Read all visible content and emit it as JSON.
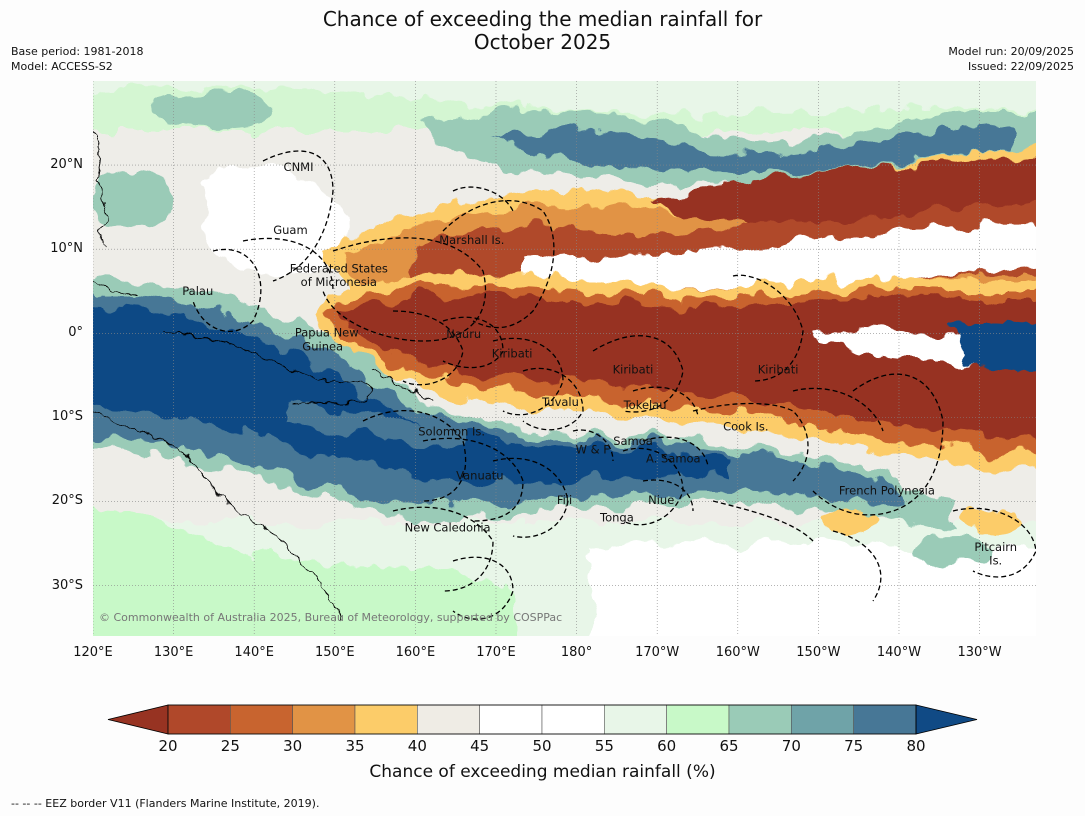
{
  "title_line1": "Chance of exceeding the median rainfall for",
  "title_line2": "October 2025",
  "meta": {
    "base_period": "Base period: 1981-2018",
    "model": "Model: ACCESS-S2",
    "model_run": "Model run: 20/09/2025",
    "issued": "Issued: 22/09/2025"
  },
  "map_extent": {
    "lon_min": 120,
    "lon_max": 237,
    "lat_min": -36,
    "lat_max": 30
  },
  "lat_ticks": [
    {
      "value": 20,
      "label": "20°N"
    },
    {
      "value": 10,
      "label": "10°N"
    },
    {
      "value": 0,
      "label": "0°"
    },
    {
      "value": -10,
      "label": "10°S"
    },
    {
      "value": -20,
      "label": "20°S"
    },
    {
      "value": -30,
      "label": "30°S"
    }
  ],
  "lon_ticks": [
    {
      "value": 120,
      "label": "120°E"
    },
    {
      "value": 130,
      "label": "130°E"
    },
    {
      "value": 140,
      "label": "140°E"
    },
    {
      "value": 150,
      "label": "150°E"
    },
    {
      "value": 160,
      "label": "160°E"
    },
    {
      "value": 170,
      "label": "170°E"
    },
    {
      "value": 180,
      "label": "180°"
    },
    {
      "value": 190,
      "label": "170°W"
    },
    {
      "value": 200,
      "label": "160°W"
    },
    {
      "value": 210,
      "label": "150°W"
    },
    {
      "value": 220,
      "label": "140°W"
    },
    {
      "value": 230,
      "label": "130°W"
    }
  ],
  "place_labels": [
    {
      "name": "CNMI",
      "lon": 145.5,
      "lat": 19.8
    },
    {
      "name": "Guam",
      "lon": 144.5,
      "lat": 12.3
    },
    {
      "name": "Marshall Is.",
      "lon": 167,
      "lat": 11.1
    },
    {
      "name": "Federated States",
      "lon": 150.5,
      "lat": 7.7
    },
    {
      "name": "of Micronesia",
      "lon": 150.5,
      "lat": 6.1
    },
    {
      "name": "Palau",
      "lon": 133,
      "lat": 5
    },
    {
      "name": "Papua New",
      "lon": 149,
      "lat": 0.1
    },
    {
      "name": "Guinea",
      "lon": 148.5,
      "lat": -1.6
    },
    {
      "name": "Nauru",
      "lon": 166,
      "lat": -0.1
    },
    {
      "name": "Kiribati",
      "lon": 172,
      "lat": -2.4
    },
    {
      "name": "Kiribati",
      "lon": 187,
      "lat": -4.3
    },
    {
      "name": "Kiribati",
      "lon": 205,
      "lat": -4.3
    },
    {
      "name": "Tuvalu",
      "lon": 178,
      "lat": -8.2
    },
    {
      "name": "Tokelau",
      "lon": 188.5,
      "lat": -8.5
    },
    {
      "name": "Cook Is.",
      "lon": 201,
      "lat": -11.1
    },
    {
      "name": "Solomon Is.",
      "lon": 164.5,
      "lat": -11.7
    },
    {
      "name": "Samoa",
      "lon": 187,
      "lat": -12.8
    },
    {
      "name": "W & F",
      "lon": 182,
      "lat": -13.8
    },
    {
      "name": "A. Samoa",
      "lon": 192,
      "lat": -14.9
    },
    {
      "name": "Vanuatu",
      "lon": 168,
      "lat": -16.9
    },
    {
      "name": "French Polynesia",
      "lon": 218.5,
      "lat": -18.7
    },
    {
      "name": "Fiji",
      "lon": 178.5,
      "lat": -19.8
    },
    {
      "name": "Niue",
      "lon": 190.5,
      "lat": -19.8
    },
    {
      "name": "Tonga",
      "lon": 185,
      "lat": -21.9
    },
    {
      "name": "New Caledonia",
      "lon": 164,
      "lat": -23.1
    },
    {
      "name": "Pitcairn",
      "lon": 232,
      "lat": -25.4
    },
    {
      "name": "Is.",
      "lon": 232,
      "lat": -27
    }
  ],
  "copyright": "© Commonwealth of Australia 2025, Bureau of Meteorology, supported by COSPPac",
  "colorbar": {
    "label": "Chance of exceeding median rainfall (%)",
    "ticks": [
      "20",
      "25",
      "30",
      "35",
      "40",
      "45",
      "50",
      "55",
      "60",
      "65",
      "70",
      "75",
      "80"
    ],
    "under_color": "#973322",
    "over_color": "#104a85",
    "colors": [
      "#b0482a",
      "#c8642f",
      "#e19345",
      "#fccc69",
      "#efece5",
      "#ffffff",
      "#ffffff",
      "#e8f6e8",
      "#c8f9c8",
      "#9acbb7",
      "#6fa3a8",
      "#477796"
    ]
  },
  "footnote": "--  --  -- EEZ border V11 (Flanders Marine Institute, 2019)."
}
